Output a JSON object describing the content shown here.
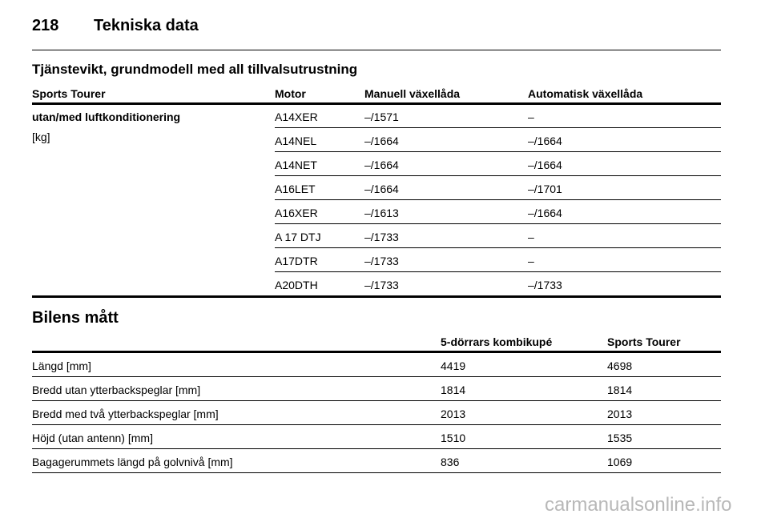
{
  "header": {
    "page_number": "218",
    "title": "Tekniska data"
  },
  "weight_table": {
    "title": "Tjänstevikt, grundmodell med all tillvalsutrustning",
    "columns": [
      "Sports Tourer",
      "Motor",
      "Manuell växellåda",
      "Automatisk växellåda"
    ],
    "row_label": "utan/med luftkonditionering",
    "unit": "[kg]",
    "rows": [
      [
        "A14XER",
        "–/1571",
        "–"
      ],
      [
        "A14NEL",
        "–/1664",
        "–/1664"
      ],
      [
        "A14NET",
        "–/1664",
        "–/1664"
      ],
      [
        "A16LET",
        "–/1664",
        "–/1701"
      ],
      [
        "A16XER",
        "–/1613",
        "–/1664"
      ],
      [
        "A 17 DTJ",
        "–/1733",
        "–"
      ],
      [
        "A17DTR",
        "–/1733",
        "–"
      ],
      [
        "A20DTH",
        "–/1733",
        "–/1733"
      ]
    ]
  },
  "dimensions_table": {
    "title": "Bilens mått",
    "columns": [
      "5-dörrars kombikupé",
      "Sports Tourer"
    ],
    "rows": [
      [
        "Längd [mm]",
        "4419",
        "4698"
      ],
      [
        "Bredd utan ytterbackspeglar [mm]",
        "1814",
        "1814"
      ],
      [
        "Bredd med två ytterbackspeglar [mm]",
        "2013",
        "2013"
      ],
      [
        "Höjd (utan antenn) [mm]",
        "1510",
        "1535"
      ],
      [
        "Bagagerummets längd på golvnivå [mm]",
        "836",
        "1069"
      ]
    ]
  },
  "watermark": "carmanualsonline.info"
}
